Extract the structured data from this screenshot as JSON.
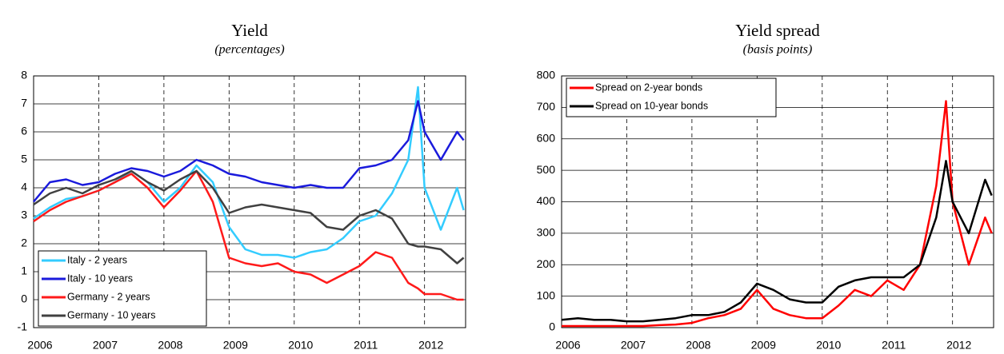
{
  "chart_data": [
    {
      "type": "line",
      "title": "Yield",
      "subtitle": "(percentages)",
      "x": [
        2006,
        2006.25,
        2006.5,
        2006.75,
        2007,
        2007.25,
        2007.5,
        2007.75,
        2008,
        2008.25,
        2008.5,
        2008.75,
        2009,
        2009.25,
        2009.5,
        2009.75,
        2010,
        2010.25,
        2010.5,
        2010.75,
        2011,
        2011.25,
        2011.5,
        2011.75,
        2011.9,
        2012,
        2012.25,
        2012.5,
        2012.6
      ],
      "series": [
        {
          "name": "Italy - 2 years",
          "color": "#33ccff",
          "values": [
            2.9,
            3.3,
            3.6,
            3.7,
            3.9,
            4.2,
            4.6,
            4.2,
            3.5,
            4.0,
            4.8,
            4.2,
            2.6,
            1.8,
            1.6,
            1.6,
            1.5,
            1.7,
            1.8,
            2.2,
            2.8,
            3.0,
            3.8,
            5.0,
            7.6,
            4.0,
            2.5,
            4.0,
            3.2
          ]
        },
        {
          "name": "Italy - 10 years",
          "color": "#1a1adc",
          "values": [
            3.5,
            4.2,
            4.3,
            4.1,
            4.2,
            4.5,
            4.7,
            4.6,
            4.4,
            4.6,
            5.0,
            4.8,
            4.5,
            4.4,
            4.2,
            4.1,
            4.0,
            4.1,
            4.0,
            4.0,
            4.7,
            4.8,
            5.0,
            5.7,
            7.1,
            6.0,
            5.0,
            6.0,
            5.7
          ]
        },
        {
          "name": "Germany - 2 years",
          "color": "#ff1a1a",
          "values": [
            2.8,
            3.2,
            3.5,
            3.7,
            3.9,
            4.2,
            4.5,
            4.0,
            3.3,
            3.9,
            4.6,
            3.5,
            1.5,
            1.3,
            1.2,
            1.3,
            1.0,
            0.9,
            0.6,
            0.9,
            1.2,
            1.7,
            1.5,
            0.6,
            0.4,
            0.2,
            0.2,
            0.0,
            0.0
          ]
        },
        {
          "name": "Germany - 10 years",
          "color": "#404040",
          "values": [
            3.4,
            3.8,
            4.0,
            3.8,
            4.1,
            4.3,
            4.6,
            4.2,
            3.9,
            4.3,
            4.6,
            4.0,
            3.1,
            3.3,
            3.4,
            3.3,
            3.2,
            3.1,
            2.6,
            2.5,
            3.0,
            3.2,
            2.9,
            2.0,
            1.9,
            1.9,
            1.8,
            1.3,
            1.5
          ]
        }
      ],
      "xlim": [
        2006,
        2012.63
      ],
      "xticks": [
        2006,
        2007,
        2008,
        2009,
        2010,
        2011,
        2012
      ],
      "ylim": [
        -1,
        8
      ],
      "yticks": [
        -1,
        0,
        1,
        2,
        3,
        4,
        5,
        6,
        7,
        8
      ],
      "grid": true,
      "legend": "lower left"
    },
    {
      "type": "line",
      "title": "Yield spread",
      "subtitle": "(basis points)",
      "x": [
        2006,
        2006.25,
        2006.5,
        2006.75,
        2007,
        2007.25,
        2007.5,
        2007.75,
        2008,
        2008.25,
        2008.5,
        2008.75,
        2009,
        2009.25,
        2009.5,
        2009.75,
        2010,
        2010.25,
        2010.5,
        2010.75,
        2011,
        2011.25,
        2011.5,
        2011.75,
        2011.9,
        2012,
        2012.25,
        2012.5,
        2012.6
      ],
      "series": [
        {
          "name": "Spread on 2-year bonds",
          "color": "#ff0000",
          "values": [
            5,
            5,
            5,
            5,
            5,
            5,
            8,
            10,
            15,
            30,
            40,
            60,
            120,
            60,
            40,
            30,
            30,
            70,
            120,
            100,
            150,
            120,
            200,
            450,
            720,
            400,
            200,
            350,
            300
          ]
        },
        {
          "name": "Spread on 10-year bonds",
          "color": "#000000",
          "values": [
            25,
            30,
            25,
            25,
            20,
            20,
            25,
            30,
            40,
            40,
            50,
            80,
            140,
            120,
            90,
            80,
            80,
            130,
            150,
            160,
            160,
            160,
            200,
            350,
            530,
            400,
            300,
            470,
            420
          ]
        }
      ],
      "xlim": [
        2006,
        2012.63
      ],
      "xticks": [
        2006,
        2007,
        2008,
        2009,
        2010,
        2011,
        2012
      ],
      "ylim": [
        0,
        800
      ],
      "yticks": [
        0,
        100,
        200,
        300,
        400,
        500,
        600,
        700,
        800
      ],
      "grid": true,
      "legend": "upper left"
    }
  ]
}
